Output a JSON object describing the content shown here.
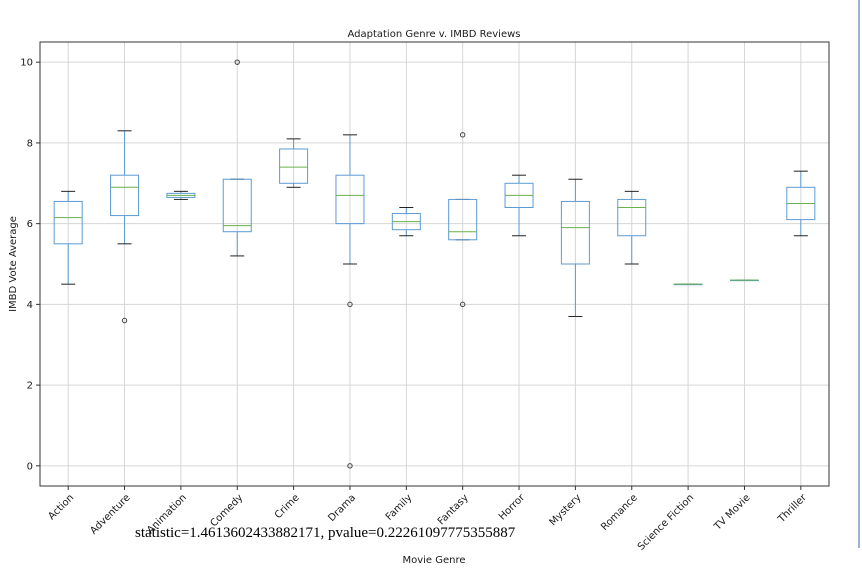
{
  "chart_data": {
    "type": "box",
    "title": "Adaptation Genre v. IMBD Reviews",
    "xlabel": "Movie Genre",
    "ylabel": "IMBD Vote Average",
    "ylim": [
      -0.5,
      10.5
    ],
    "yticks": [
      "0",
      "2",
      "4",
      "6",
      "8",
      "10"
    ],
    "grid": true,
    "categories": [
      "Action",
      "Adventure",
      "Animation",
      "Comedy",
      "Crime",
      "Drama",
      "Family",
      "Fantasy",
      "Horror",
      "Mystery",
      "Romance",
      "Science Fiction",
      "TV Movie",
      "Thriller"
    ],
    "boxes": [
      {
        "whisker_low": 4.5,
        "q1": 5.5,
        "median": 6.15,
        "q3": 6.55,
        "whisker_high": 6.8,
        "outliers": []
      },
      {
        "whisker_low": 5.5,
        "q1": 6.2,
        "median": 6.9,
        "q3": 7.2,
        "whisker_high": 8.3,
        "outliers": [
          3.6
        ]
      },
      {
        "whisker_low": 6.6,
        "q1": 6.65,
        "median": 6.7,
        "q3": 6.75,
        "whisker_high": 6.8,
        "outliers": []
      },
      {
        "whisker_low": 5.2,
        "q1": 5.8,
        "median": 5.95,
        "q3": 7.1,
        "whisker_high": 7.1,
        "outliers": [
          10.0
        ]
      },
      {
        "whisker_low": 6.9,
        "q1": 7.0,
        "median": 7.4,
        "q3": 7.85,
        "whisker_high": 8.1,
        "outliers": []
      },
      {
        "whisker_low": 5.0,
        "q1": 6.0,
        "median": 6.7,
        "q3": 7.2,
        "whisker_high": 8.2,
        "outliers": [
          4.0,
          0.0
        ]
      },
      {
        "whisker_low": 5.7,
        "q1": 5.85,
        "median": 6.05,
        "q3": 6.25,
        "whisker_high": 6.4,
        "outliers": []
      },
      {
        "whisker_low": 5.6,
        "q1": 5.6,
        "median": 5.8,
        "q3": 6.6,
        "whisker_high": 6.6,
        "outliers": [
          8.2,
          4.0
        ]
      },
      {
        "whisker_low": 5.7,
        "q1": 6.4,
        "median": 6.7,
        "q3": 7.0,
        "whisker_high": 7.2,
        "outliers": []
      },
      {
        "whisker_low": 3.7,
        "q1": 5.0,
        "median": 5.9,
        "q3": 6.55,
        "whisker_high": 7.1,
        "outliers": []
      },
      {
        "whisker_low": 5.0,
        "q1": 5.7,
        "median": 6.4,
        "q3": 6.6,
        "whisker_high": 6.8,
        "outliers": []
      },
      {
        "whisker_low": 4.5,
        "q1": 4.5,
        "median": 4.5,
        "q3": 4.5,
        "whisker_high": 4.5,
        "outliers": []
      },
      {
        "whisker_low": 4.6,
        "q1": 4.6,
        "median": 4.6,
        "q3": 4.6,
        "whisker_high": 4.6,
        "outliers": []
      },
      {
        "whisker_low": 5.7,
        "q1": 6.1,
        "median": 6.5,
        "q3": 6.9,
        "whisker_high": 7.3,
        "outliers": []
      }
    ],
    "colors": {
      "box": "#5b9bd5",
      "median": "#6ab04c",
      "grid": "#d6d6d6",
      "outlier": "#444444"
    }
  },
  "stat_annotation": "statistic=1.4613602433882171, pvalue=0.22261097775355887"
}
